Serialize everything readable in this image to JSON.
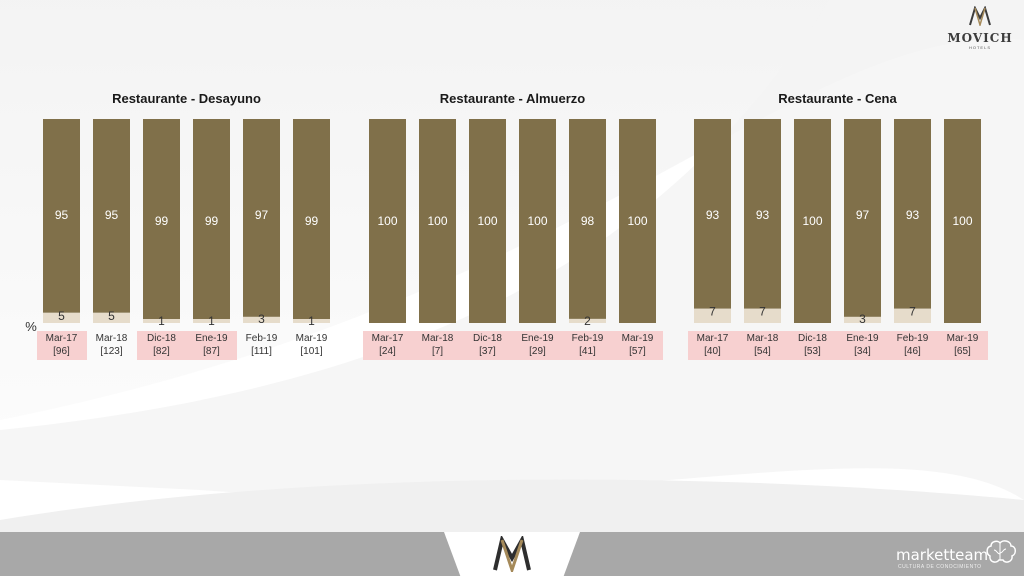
{
  "brand": {
    "name": "MOVICH",
    "sub": "HOTELS"
  },
  "footer": {
    "brand": "marketteam",
    "tagline": "CULTURA DE CONOCIMIENTO"
  },
  "percent_label": "%",
  "colors": {
    "top": "#80704a",
    "bottom": "#e6dccb",
    "highlight": "#f7d0d0",
    "title": "#1a1a1a"
  },
  "chart_data": [
    {
      "type": "bar",
      "stacked": true,
      "title": "Restaurante - Desayuno",
      "categories": [
        "Mar-17",
        "Mar-18",
        "Dic-18",
        "Ene-19",
        "Feb-19",
        "Mar-19"
      ],
      "base_counts": [
        "[96]",
        "[123]",
        "[82]",
        "[87]",
        "[111]",
        "[101]"
      ],
      "highlighted": [
        true,
        false,
        true,
        true,
        false,
        false
      ],
      "series": [
        {
          "values": [
            95,
            95,
            99,
            99,
            97,
            99
          ]
        },
        {
          "values": [
            5,
            5,
            1,
            1,
            3,
            1
          ]
        }
      ],
      "ylim": [
        0,
        100
      ]
    },
    {
      "type": "bar",
      "stacked": true,
      "title": "Restaurante - Almuerzo",
      "categories": [
        "Mar-17",
        "Mar-18",
        "Dic-18",
        "Ene-19",
        "Feb-19",
        "Mar-19"
      ],
      "base_counts": [
        "[24]",
        "[7]",
        "[37]",
        "[29]",
        "[41]",
        "[57]"
      ],
      "highlighted": [
        true,
        true,
        true,
        true,
        true,
        true
      ],
      "series": [
        {
          "values": [
            100,
            100,
            100,
            100,
            98,
            100
          ]
        },
        {
          "values": [
            null,
            null,
            null,
            null,
            2,
            null
          ]
        }
      ],
      "ylim": [
        0,
        100
      ]
    },
    {
      "type": "bar",
      "stacked": true,
      "title": "Restaurante - Cena",
      "categories": [
        "Mar-17",
        "Mar-18",
        "Dic-18",
        "Ene-19",
        "Feb-19",
        "Mar-19"
      ],
      "base_counts": [
        "[40]",
        "[54]",
        "[53]",
        "[34]",
        "[46]",
        "[65]"
      ],
      "highlighted": [
        true,
        true,
        true,
        true,
        true,
        true
      ],
      "series": [
        {
          "values": [
            93,
            93,
            100,
            97,
            93,
            100
          ]
        },
        {
          "values": [
            7,
            7,
            null,
            3,
            7,
            null
          ]
        }
      ],
      "ylim": [
        0,
        100
      ]
    }
  ]
}
